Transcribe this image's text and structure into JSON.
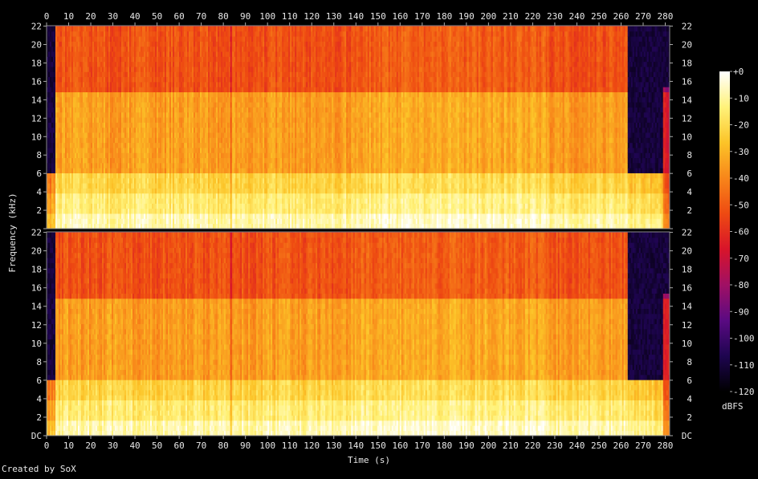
{
  "footer": {
    "credit": "Created by SoX"
  },
  "chart_data": {
    "type": "heatmap",
    "title": "",
    "xlabel": "Time (s)",
    "ylabel": "Frequency (kHz)",
    "xlim": [
      0,
      282
    ],
    "ylim": [
      0,
      22.05
    ],
    "x_ticks": [
      "0",
      "10",
      "20",
      "30",
      "40",
      "50",
      "60",
      "70",
      "80",
      "90",
      "100",
      "110",
      "120",
      "130",
      "140",
      "150",
      "160",
      "170",
      "180",
      "190",
      "200",
      "210",
      "220",
      "230",
      "240",
      "250",
      "260",
      "270",
      "280"
    ],
    "y_ticks": [
      "DC",
      "2",
      "4",
      "6",
      "8",
      "10",
      "12",
      "14",
      "16",
      "18",
      "20",
      "22"
    ],
    "channels": [
      "left",
      "right"
    ],
    "colorbar": {
      "label": "dBFS",
      "range": [
        -120,
        0
      ],
      "ticks": [
        "+0",
        "-10",
        "-20",
        "-30",
        "-40",
        "-50",
        "-60",
        "-70",
        "-80",
        "-90",
        "-100",
        "-110",
        "-120"
      ],
      "colormap": [
        "#000000",
        "#1e0550",
        "#5a0a82",
        "#a01064",
        "#d8142a",
        "#ee4a12",
        "#f8861a",
        "#fcc428",
        "#fff27a",
        "#ffffff"
      ]
    },
    "bands": [
      {
        "freq": [
          0,
          1.5
        ],
        "level_db": -8
      },
      {
        "freq": [
          1.5,
          4
        ],
        "level_db": -15
      },
      {
        "freq": [
          4,
          6
        ],
        "level_db": -22
      },
      {
        "freq": [
          6,
          15
        ],
        "level_db": -35
      },
      {
        "freq": [
          15,
          22.05
        ],
        "level_db": -52
      }
    ],
    "segments": [
      {
        "time": [
          0,
          4
        ],
        "hf_cutoff_khz": 6,
        "level_offset_db": -20
      },
      {
        "time": [
          4,
          83
        ],
        "hf_cutoff_khz": 22.05,
        "level_offset_db": 0
      },
      {
        "time": [
          83,
          84
        ],
        "hf_cutoff_khz": 22.05,
        "level_offset_db": -12
      },
      {
        "time": [
          84,
          138
        ],
        "hf_cutoff_khz": 22.05,
        "level_offset_db": 0
      },
      {
        "time": [
          138,
          227
        ],
        "hf_cutoff_khz": 22.05,
        "level_offset_db": 3
      },
      {
        "time": [
          227,
          263
        ],
        "hf_cutoff_khz": 22.05,
        "level_offset_db": 0
      },
      {
        "time": [
          263,
          279
        ],
        "hf_cutoff_khz": 6,
        "level_offset_db": -4
      },
      {
        "time": [
          279,
          282
        ],
        "hf_cutoff_khz": 15,
        "level_offset_db": -30
      }
    ]
  }
}
